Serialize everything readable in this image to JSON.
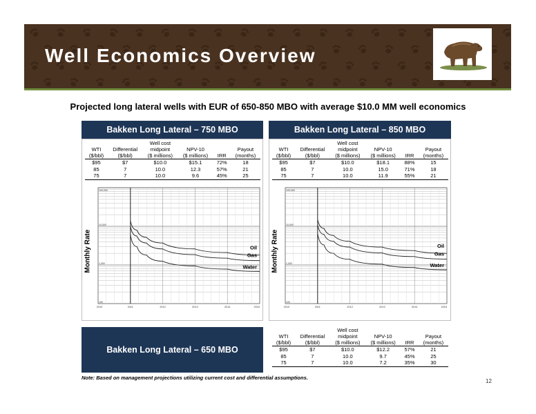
{
  "header": {
    "title": "Well Economics Overview"
  },
  "subtitle": "Projected long lateral wells with EUR of 650-850 MBO with average $10.0 MM well economics",
  "columns": {
    "wti": [
      "WTI",
      "($/bbl)"
    ],
    "differential": [
      "Differential",
      "($/bbl)"
    ],
    "cost": [
      "Well cost",
      "midpoint",
      "($ millions)"
    ],
    "npv": [
      "NPV-10",
      "($ millions)"
    ],
    "irr": [
      "IRR"
    ],
    "payout": [
      "Payout",
      "(months)"
    ]
  },
  "panels": [
    {
      "title": "Bakken Long Lateral – 750 MBO",
      "rows": [
        [
          "$95",
          "$7",
          "$10.0",
          "$15.1",
          "72%",
          "18"
        ],
        [
          "85",
          "7",
          "10.0",
          "12.3",
          "57%",
          "21"
        ],
        [
          "75",
          "7",
          "10.0",
          "9.6",
          "45%",
          "25"
        ]
      ]
    },
    {
      "title": "Bakken Long Lateral – 850 MBO",
      "rows": [
        [
          "$95",
          "$7",
          "$10.0",
          "$18.1",
          "88%",
          "15"
        ],
        [
          "85",
          "7",
          "10.0",
          "15.0",
          "71%",
          "18"
        ],
        [
          "75",
          "7",
          "10.0",
          "11.9",
          "55%",
          "21"
        ]
      ]
    },
    {
      "title": "Bakken Long Lateral – 650 MBO",
      "rows": [
        [
          "$95",
          "$7",
          "$10.0",
          "$12.2",
          "57%",
          "21"
        ],
        [
          "85",
          "7",
          "10.0",
          "9.7",
          "45%",
          "25"
        ],
        [
          "75",
          "7",
          "10.0",
          "7.2",
          "35%",
          "30"
        ]
      ]
    }
  ],
  "chart_data": [
    {
      "type": "line",
      "ylabel": "Monthly Rate",
      "yscale": "log",
      "ylim": [
        100,
        100000
      ],
      "ytick_labels": [
        "100,000",
        "10,000",
        "1,000",
        "100"
      ],
      "xlim": [
        2010,
        2015
      ],
      "xtick_labels": [
        "2010",
        "2011",
        "2012",
        "2013",
        "2014",
        "2015"
      ],
      "series": [
        {
          "name": "Oil",
          "x": [
            2011.0,
            2011.2,
            2011.5,
            2012,
            2013,
            2014,
            2015
          ],
          "values": [
            14000,
            8000,
            5200,
            3700,
            2600,
            2100,
            1800
          ]
        },
        {
          "name": "Gas",
          "x": [
            2011.0,
            2011.2,
            2011.5,
            2012,
            2013,
            2014,
            2015
          ],
          "values": [
            10000,
            5600,
            3700,
            2600,
            1850,
            1500,
            1300
          ]
        },
        {
          "name": "Water",
          "x": [
            2011.0,
            2011.2,
            2011.5,
            2012,
            2013,
            2014,
            2015
          ],
          "values": [
            6000,
            3000,
            1800,
            1250,
            950,
            780,
            680
          ]
        }
      ]
    },
    {
      "type": "line",
      "ylabel": "Monthly Rate",
      "yscale": "log",
      "ylim": [
        100,
        100000
      ],
      "ytick_labels": [
        "100,000",
        "10,000",
        "1,000",
        "100"
      ],
      "xlim": [
        2010,
        2015
      ],
      "xtick_labels": [
        "2010",
        "2011",
        "2012",
        "2013",
        "2014",
        "2015"
      ],
      "series": [
        {
          "name": "Oil",
          "x": [
            2011.0,
            2011.2,
            2011.5,
            2012,
            2013,
            2014,
            2015
          ],
          "values": [
            15000,
            8800,
            5800,
            4100,
            2900,
            2350,
            2000
          ]
        },
        {
          "name": "Gas",
          "x": [
            2011.0,
            2011.2,
            2011.5,
            2012,
            2013,
            2014,
            2015
          ],
          "values": [
            11000,
            6200,
            4100,
            2900,
            2050,
            1650,
            1420
          ]
        },
        {
          "name": "Water",
          "x": [
            2011.0,
            2011.2,
            2011.5,
            2012,
            2013,
            2014,
            2015
          ],
          "values": [
            6500,
            3300,
            2000,
            1400,
            1050,
            860,
            750
          ]
        }
      ]
    }
  ],
  "footnote": "Note: Based on management projections utilizing current cost and differential assumptions.",
  "page_number": "12",
  "colors": {
    "banner": "#4a3220",
    "header_blue": "#1e3656",
    "accent_green": "#6f8d3d"
  }
}
